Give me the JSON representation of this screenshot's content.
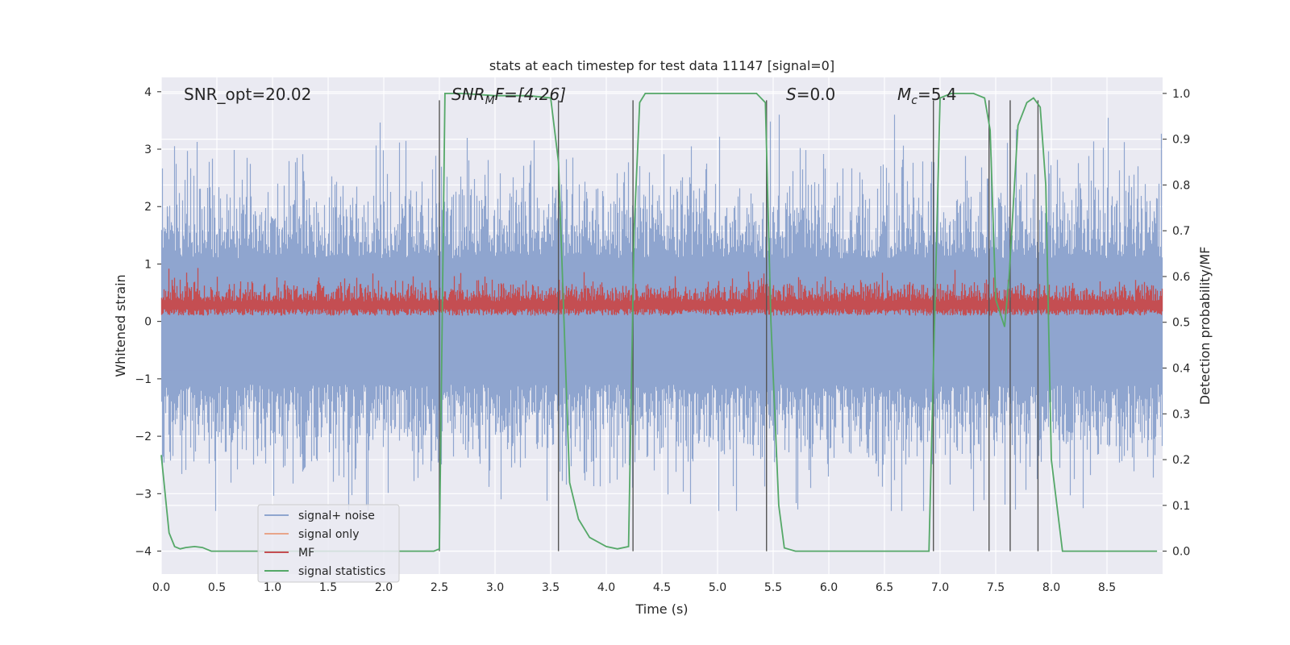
{
  "chart_data": {
    "type": "line",
    "title": "stats at each timestep for test data 11147 [signal=0]",
    "xlabel": "Time (s)",
    "ylabel": "Whitened strain",
    "y2label": "Detection probability/MF",
    "xlim": [
      0,
      9
    ],
    "ylim": [
      -4.4,
      4.25
    ],
    "y2lim": [
      -0.05,
      1.035
    ],
    "xticks": [
      "0.0",
      "0.5",
      "1.0",
      "1.5",
      "2.0",
      "2.5",
      "3.0",
      "3.5",
      "4.0",
      "4.5",
      "5.0",
      "5.5",
      "6.0",
      "6.5",
      "7.0",
      "7.5",
      "8.0",
      "8.5"
    ],
    "yticks": [
      "4",
      "3",
      "2",
      "1",
      "0",
      "−1",
      "−2",
      "−3",
      "−4"
    ],
    "y2ticks": [
      "1.0",
      "0.9",
      "0.8",
      "0.7",
      "0.6",
      "0.5",
      "0.4",
      "0.3",
      "0.2",
      "0.1",
      "0.0"
    ],
    "grid": true,
    "legend_position": "lower-left",
    "annotations": {
      "snr_opt": "SNR_opt=20.02",
      "snr_mf_base": "SNR",
      "snr_mf_sub": "M",
      "snr_mf_rest": "F=[4.26]",
      "s_label": "S",
      "s_value": "=0.0",
      "mc_base": "M",
      "mc_sub": "c",
      "mc_value": "=5.4"
    },
    "series": [
      {
        "name": "signal+ noise",
        "color": "#8fa5cf",
        "description_values": "dense whitened noise, amplitude roughly within [-3.3, 3.6]",
        "amplitude_range": [
          -3.3,
          3.6
        ]
      },
      {
        "name": "signal only",
        "color": "#e8a58a",
        "values": []
      },
      {
        "name": "MF",
        "color": "#c44e52",
        "amplitude_range": [
          0.0,
          0.95
        ]
      },
      {
        "name": "signal statistics",
        "color": "#55a868",
        "x": [
          0.0,
          0.07,
          0.12,
          0.17,
          0.22,
          0.3,
          0.37,
          0.45,
          0.6,
          1.0,
          2.0,
          2.3,
          2.45,
          2.5,
          2.55,
          2.6,
          2.7,
          3.0,
          3.3,
          3.5,
          3.57,
          3.62,
          3.67,
          3.75,
          3.85,
          4.0,
          4.1,
          4.2,
          4.25,
          4.3,
          4.35,
          4.5,
          5.0,
          5.35,
          5.43,
          5.48,
          5.55,
          5.6,
          5.7,
          6.0,
          6.5,
          6.9,
          6.95,
          7.0,
          7.1,
          7.3,
          7.4,
          7.45,
          7.5,
          7.58,
          7.62,
          7.7,
          7.78,
          7.84,
          7.9,
          7.95,
          8.0,
          8.1,
          8.5,
          8.95
        ],
        "values": [
          0.21,
          0.04,
          0.01,
          0.005,
          0.008,
          0.01,
          0.008,
          0.0,
          0.0,
          0.0,
          0.0,
          0.0,
          0.0,
          0.005,
          1.0,
          1.0,
          1.0,
          0.995,
          0.995,
          0.99,
          0.85,
          0.5,
          0.15,
          0.07,
          0.03,
          0.01,
          0.005,
          0.01,
          0.7,
          0.98,
          1.0,
          1.0,
          1.0,
          1.0,
          0.98,
          0.5,
          0.1,
          0.007,
          0.0,
          0.0,
          0.0,
          0.0,
          0.5,
          0.99,
          1.0,
          1.0,
          0.99,
          0.92,
          0.55,
          0.49,
          0.6,
          0.93,
          0.98,
          0.99,
          0.97,
          0.8,
          0.2,
          0.0,
          0.0,
          0.0
        ]
      }
    ],
    "vertical_lines_x": [
      2.5,
      3.57,
      4.24,
      5.44,
      6.94,
      7.44,
      7.63,
      7.88
    ]
  }
}
